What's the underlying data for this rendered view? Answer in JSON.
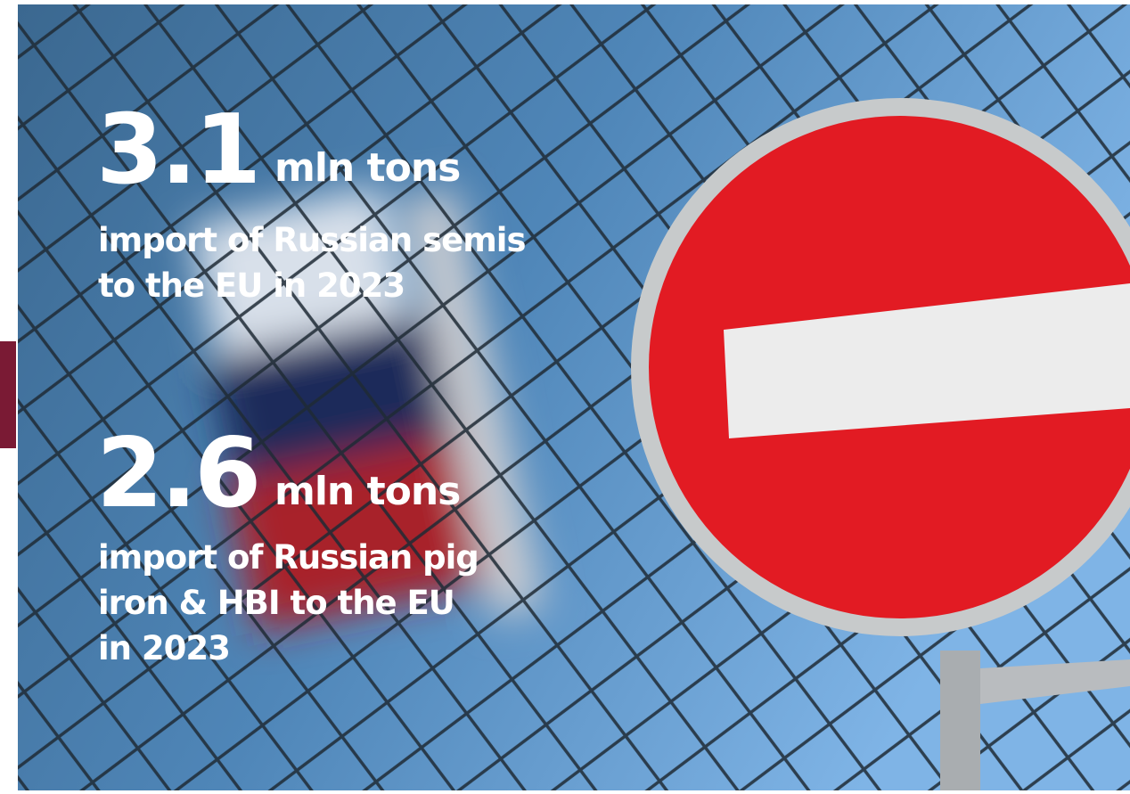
{
  "stats": [
    {
      "value": "3.1",
      "unit": "mln tons",
      "description": [
        "import of Russian semis",
        "to the EU in 2023"
      ]
    },
    {
      "value": "2.6",
      "unit": "mln tons",
      "description": [
        "import of Russian pig",
        "iron & HBI to the EU",
        "in 2023"
      ]
    }
  ]
}
